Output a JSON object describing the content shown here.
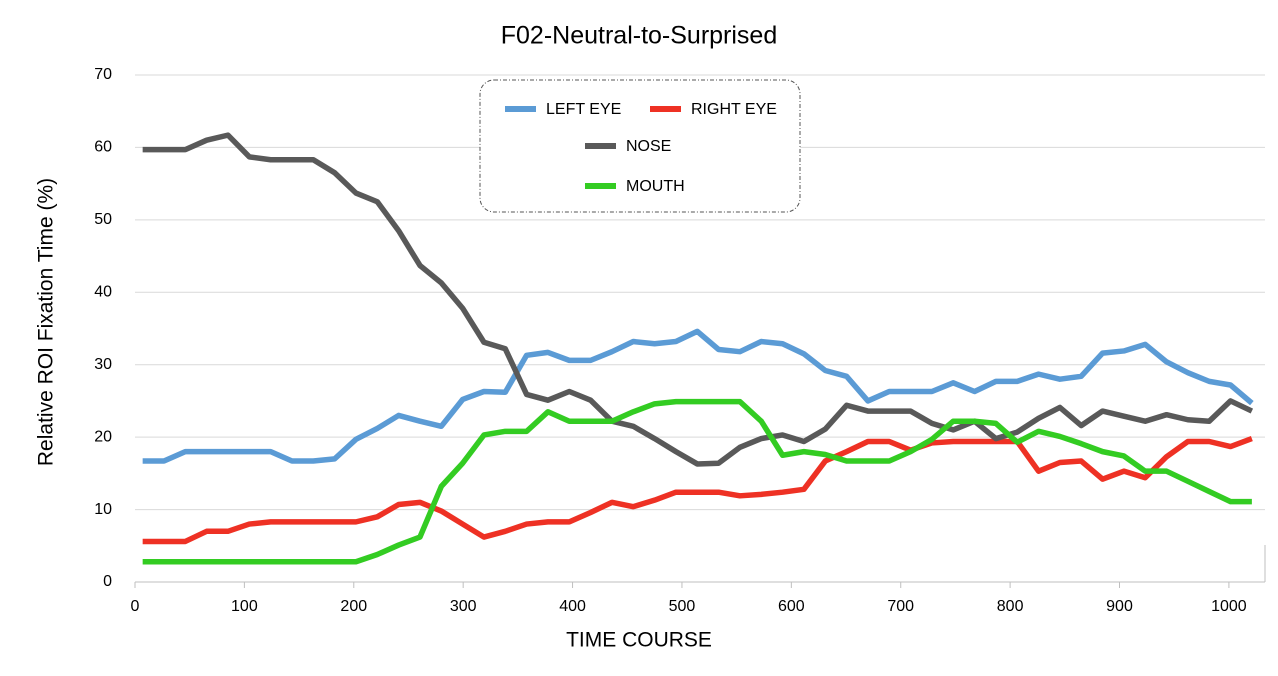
{
  "chart_data": {
    "type": "line",
    "title": "F02-Neutral-to-Surprised",
    "xlabel": "TIME  COURSE",
    "ylabel": "Relative  ROI  Fixation  Time  (%)",
    "x": [
      7,
      26.5,
      46,
      65.5,
      85,
      104.5,
      124,
      143.5,
      163,
      182.5,
      202,
      221.5,
      241,
      260.5,
      280,
      299.5,
      319,
      338.5,
      358,
      377.5,
      397,
      416.5,
      436,
      455.5,
      475,
      494.5,
      514,
      533.5,
      553,
      572.5,
      592,
      611.5,
      631,
      650.5,
      670,
      689.5,
      709,
      728.5,
      748,
      767.5,
      787,
      806.5,
      826,
      845.5,
      865,
      884.5,
      904,
      923.5,
      943,
      962.5,
      982,
      1001.5,
      1021
    ],
    "series": [
      {
        "name": "LEFT EYE",
        "color": "#5b9bd5",
        "values": [
          16.7,
          16.7,
          18,
          18,
          18,
          18,
          18,
          16.7,
          16.7,
          17,
          19.7,
          21.2,
          23,
          22.2,
          21.5,
          25.2,
          26.3,
          26.2,
          31.3,
          31.7,
          30.6,
          30.6,
          31.8,
          33.2,
          32.9,
          33.2,
          34.6,
          32.1,
          31.8,
          33.2,
          32.9,
          31.5,
          29.2,
          28.4,
          25,
          26.3,
          26.3,
          26.3,
          27.5,
          26.3,
          27.7,
          27.7,
          28.7,
          28,
          28.4,
          31.6,
          31.9,
          32.8,
          30.4,
          28.9,
          27.7,
          27.2,
          24.7
        ]
      },
      {
        "name": "RIGHT EYE",
        "color": "#ee3124",
        "values": [
          5.6,
          5.6,
          5.6,
          7,
          7,
          8,
          8.3,
          8.3,
          8.3,
          8.3,
          8.3,
          9,
          10.7,
          11,
          9.8,
          8,
          6.2,
          7,
          8,
          8.3,
          8.3,
          9.6,
          11,
          10.4,
          11.3,
          12.4,
          12.4,
          12.4,
          11.9,
          12.1,
          12.4,
          12.8,
          16.7,
          18,
          19.4,
          19.4,
          18.2,
          19.2,
          19.4,
          19.4,
          19.4,
          19.4,
          15.3,
          16.5,
          16.7,
          14.2,
          15.3,
          14.4,
          17.3,
          19.4,
          19.4,
          18.7,
          19.8
        ]
      },
      {
        "name": "NOSE",
        "color": "#595959",
        "values": [
          59.7,
          59.7,
          59.7,
          61,
          61.7,
          58.7,
          58.3,
          58.3,
          58.3,
          56.5,
          53.7,
          52.5,
          48.5,
          43.7,
          41.3,
          37.8,
          33.1,
          32.2,
          25.9,
          25.1,
          26.3,
          25.1,
          22.2,
          21.5,
          19.8,
          18,
          16.3,
          16.4,
          18.6,
          19.8,
          20.3,
          19.4,
          21.1,
          24.4,
          23.6,
          23.6,
          23.6,
          21.9,
          21,
          22.2,
          19.8,
          20.7,
          22.6,
          24.1,
          21.6,
          23.6,
          22.9,
          22.2,
          23.1,
          22.4,
          22.2,
          25,
          23.6
        ]
      },
      {
        "name": "MOUTH",
        "color": "#33cc22",
        "values": [
          2.8,
          2.8,
          2.8,
          2.8,
          2.8,
          2.8,
          2.8,
          2.8,
          2.8,
          2.8,
          2.8,
          3.8,
          5.1,
          6.2,
          13.2,
          16.4,
          20.3,
          20.8,
          20.8,
          23.5,
          22.2,
          22.2,
          22.2,
          23.5,
          24.6,
          24.9,
          24.9,
          24.9,
          24.9,
          22.2,
          17.5,
          18,
          17.6,
          16.7,
          16.7,
          16.7,
          18,
          19.7,
          22.2,
          22.2,
          21.9,
          19.3,
          20.8,
          20.1,
          19.1,
          18,
          17.4,
          15.3,
          15.3,
          13.9,
          12.5,
          11.1,
          11.1
        ]
      }
    ],
    "xlim": [
      0,
      1033
    ],
    "ylim": [
      0,
      70
    ],
    "xticks": [
      0,
      100,
      200,
      300,
      400,
      500,
      600,
      700,
      800,
      900,
      1000
    ],
    "yticks": [
      0,
      10,
      20,
      30,
      40,
      50,
      60,
      70
    ],
    "grid": true,
    "legend": "upper center"
  }
}
